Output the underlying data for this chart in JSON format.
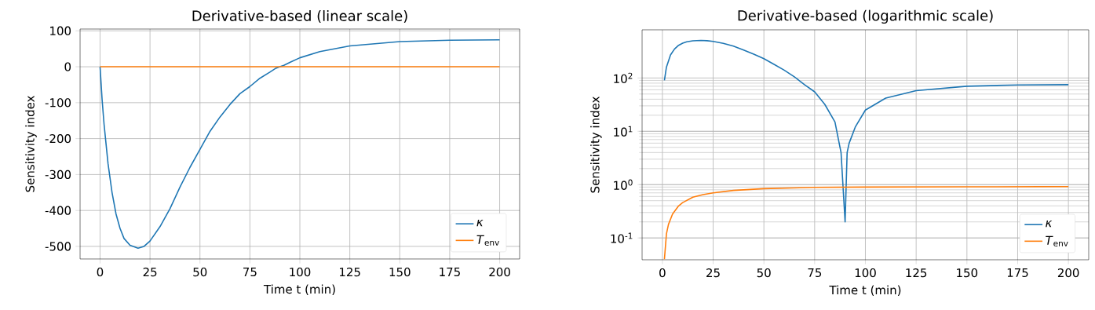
{
  "chart_data": [
    {
      "type": "line",
      "title": "Derivative-based  (linear scale)",
      "xlabel": "Time t (min)",
      "ylabel": "Sensitivity index",
      "xlim": [
        -10,
        210
      ],
      "ylim": [
        -535,
        105
      ],
      "xticks": [
        0,
        25,
        50,
        75,
        100,
        125,
        150,
        175,
        200
      ],
      "yticks": [
        -500,
        -400,
        -300,
        -200,
        -100,
        0,
        100
      ],
      "grid": true,
      "legend": "bottom right",
      "series": [
        {
          "name": "*κ*",
          "color": "#1f77b4",
          "x": [
            0,
            1,
            2,
            4,
            6,
            8,
            10,
            12,
            15,
            19,
            22,
            25,
            30,
            35,
            40,
            45,
            50,
            55,
            60,
            65,
            70,
            75,
            80,
            85,
            88,
            90,
            92,
            95,
            100,
            110,
            125,
            150,
            175,
            200
          ],
          "values": [
            0,
            -90,
            -160,
            -270,
            -350,
            -410,
            -450,
            -478,
            -497,
            -505,
            -500,
            -485,
            -445,
            -395,
            -335,
            -280,
            -230,
            -180,
            -140,
            -105,
            -75,
            -55,
            -32,
            -15,
            -4,
            0,
            4,
            12,
            25,
            42,
            58,
            70,
            74,
            75
          ]
        },
        {
          "name": "*T*$_{env}$",
          "color": "#ff7f0e",
          "x": [
            0,
            200
          ],
          "values": [
            0,
            0
          ]
        }
      ]
    },
    {
      "type": "line",
      "title": "Derivative-based  (logarithmic scale)",
      "xlabel": "Time t (min)",
      "ylabel": "Sensitivity index",
      "log": "y",
      "xlim": [
        -10,
        210
      ],
      "ylim": [
        0.039,
        800
      ],
      "xticks": [
        0,
        25,
        50,
        75,
        100,
        125,
        150,
        175,
        200
      ],
      "yticks": [
        {
          "value": 0.1,
          "label": "10$^{-1}$"
        },
        {
          "value": 1,
          "label": "10$^{0}$"
        },
        {
          "value": 10,
          "label": "10$^{1}$"
        },
        {
          "value": 100,
          "label": "10$^{2}$"
        }
      ],
      "grid": true,
      "legend": "bottom right",
      "series": [
        {
          "name": "*κ*",
          "color": "#1f77b4",
          "x": [
            1,
            2,
            4,
            6,
            8,
            10,
            12,
            15,
            19,
            22,
            25,
            30,
            35,
            40,
            45,
            50,
            55,
            60,
            65,
            70,
            75,
            80,
            85,
            88,
            90,
            91,
            92,
            95,
            100,
            110,
            125,
            150,
            175,
            200
          ],
          "values": [
            90,
            160,
            270,
            350,
            410,
            450,
            478,
            497,
            505,
            500,
            485,
            445,
            395,
            335,
            280,
            230,
            180,
            140,
            105,
            75,
            55,
            32,
            15,
            4,
            0.2,
            4,
            6,
            12,
            25,
            42,
            58,
            70,
            74,
            75
          ]
        },
        {
          "name": "*T*$_{env}$",
          "color": "#ff7f0e",
          "x": [
            1,
            2,
            3,
            5,
            8,
            10,
            15,
            20,
            25,
            35,
            50,
            75,
            100,
            150,
            200
          ],
          "values": [
            0.04,
            0.12,
            0.18,
            0.28,
            0.4,
            0.46,
            0.58,
            0.65,
            0.7,
            0.78,
            0.84,
            0.89,
            0.9,
            0.91,
            0.92
          ]
        }
      ]
    }
  ]
}
